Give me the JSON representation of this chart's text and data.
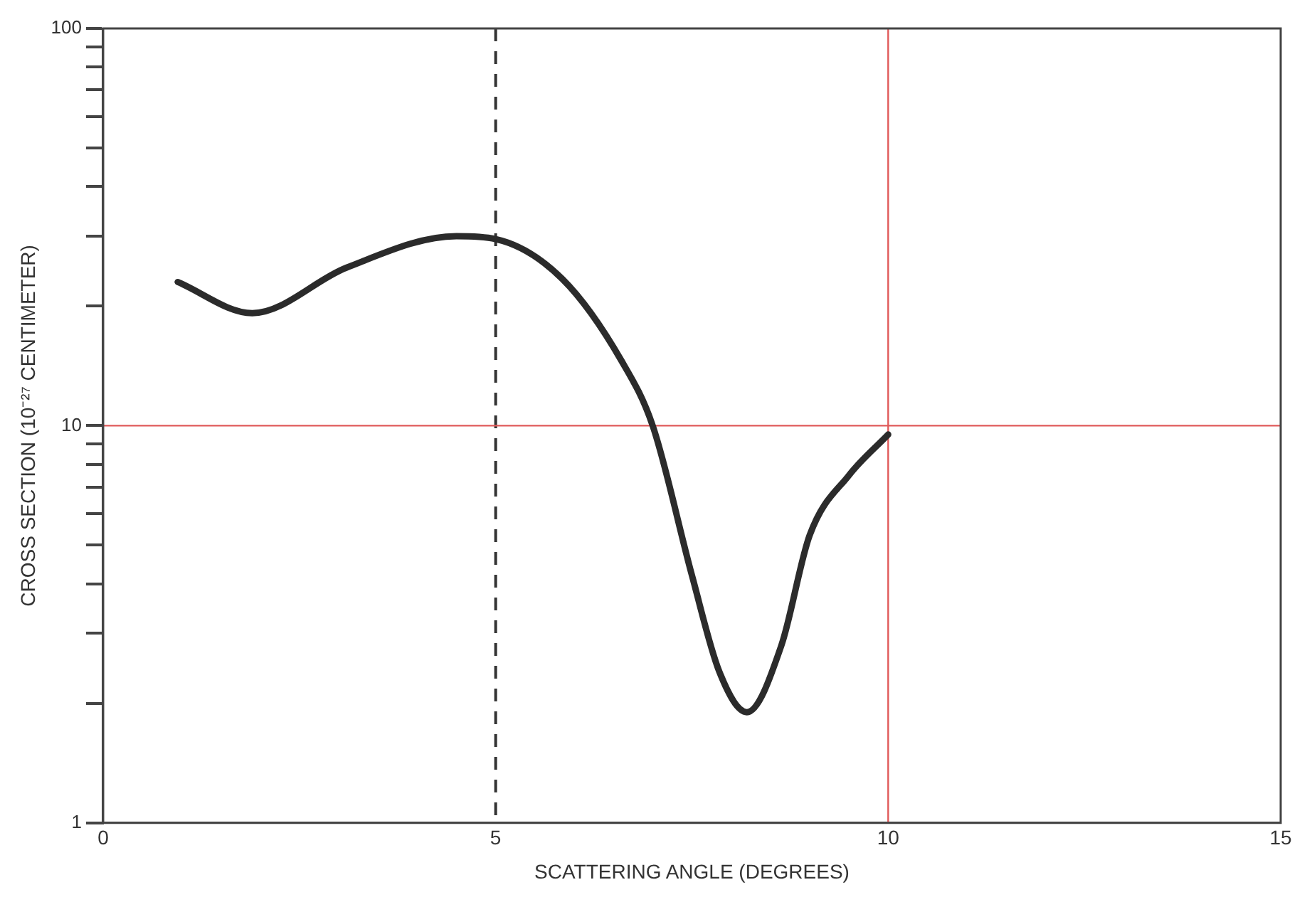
{
  "chart_data": {
    "type": "line",
    "xlabel": "SCATTERING ANGLE (DEGREES)",
    "ylabel": "CROSS SECTION (10⁻²⁷ CENTIMETER)",
    "log": "y",
    "grid": false,
    "marker": "none",
    "line_style": "solid",
    "xlim": [
      0,
      15
    ],
    "xticks": [
      0,
      5,
      10,
      15
    ],
    "ylim": [
      1,
      100
    ],
    "yticks": [
      1,
      {
        "value": 2,
        "label": null
      },
      {
        "value": 3,
        "label": null
      },
      {
        "value": 4,
        "label": null
      },
      {
        "value": 5,
        "label": null
      },
      {
        "value": 6,
        "label": null
      },
      {
        "value": 7,
        "label": null
      },
      {
        "value": 8,
        "label": null
      },
      {
        "value": 9,
        "label": null
      },
      10,
      {
        "value": 20,
        "label": null
      },
      {
        "value": 30,
        "label": null
      },
      {
        "value": 40,
        "label": null
      },
      {
        "value": 50,
        "label": null
      },
      {
        "value": 60,
        "label": null
      },
      {
        "value": 70,
        "label": null
      },
      {
        "value": 80,
        "label": null
      },
      {
        "value": 90,
        "label": null
      },
      100
    ],
    "series": [
      {
        "color": "#2b2b2b",
        "x": [
          0.95,
          1.9,
          3.1,
          4.5,
          5,
          5.85,
          6.6,
          7.0,
          7.5,
          7.85,
          8.2,
          8.64,
          9.0,
          9.5,
          10
        ],
        "values": [
          23,
          19.2,
          25,
          30,
          29.5,
          23.4,
          14.6,
          10,
          4.2,
          2.4,
          1.9,
          2.8,
          5.3,
          7.5,
          9.5
        ]
      }
    ],
    "ref_lines": [
      {
        "axis": "x",
        "value": 5,
        "color": "#333333",
        "line_style": "dashed"
      },
      {
        "axis": "x",
        "value": 10,
        "color": "#e05a5a",
        "line_style": "solid"
      },
      {
        "axis": "y",
        "value": 10,
        "color": "#e05a5a",
        "line_style": "solid"
      }
    ]
  }
}
